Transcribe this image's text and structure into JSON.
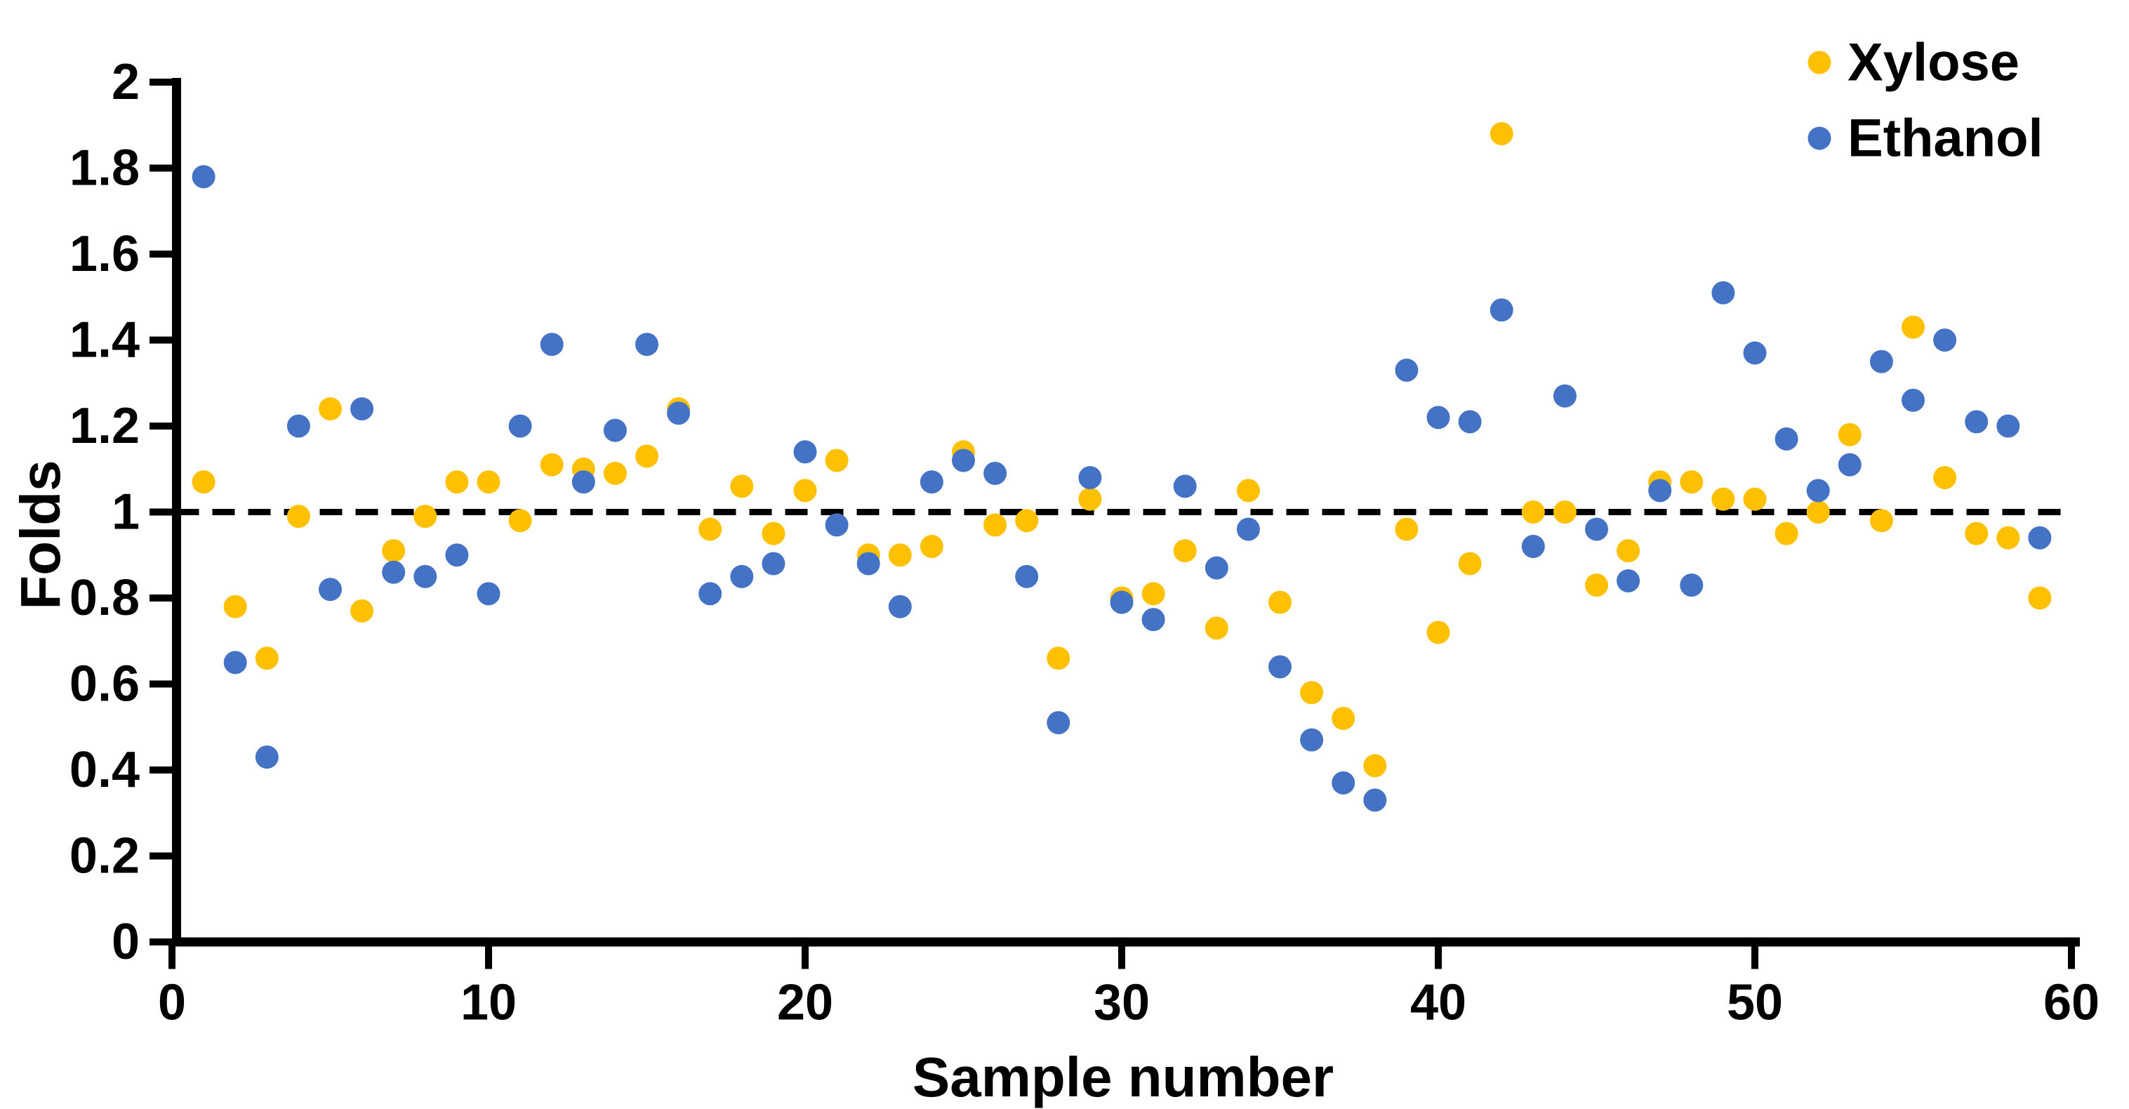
{
  "chart_data": {
    "type": "scatter",
    "title": "",
    "xlabel": "Sample number",
    "ylabel": "Folds",
    "xlim": [
      0,
      60
    ],
    "ylim": [
      0,
      2
    ],
    "x_ticks": [
      0,
      10,
      20,
      30,
      40,
      50,
      60
    ],
    "x_tick_labels": [
      "0",
      "10",
      "20",
      "30",
      "40",
      "50",
      "60"
    ],
    "y_ticks": [
      0,
      0.2,
      0.4,
      0.6,
      0.8,
      1,
      1.2,
      1.4,
      1.6,
      1.8,
      2
    ],
    "y_tick_labels": [
      "0",
      "0.2",
      "0.4",
      "0.6",
      "0.8",
      "1",
      "1.2",
      "1.4",
      "1.6",
      "1.8",
      "2"
    ],
    "grid": false,
    "axis_color": "#000000",
    "background_color": "#ffffff",
    "reference_line": {
      "y": 1,
      "style": "dashed",
      "color": "#000000"
    },
    "legend": {
      "position": "top-right"
    },
    "x": [
      1,
      2,
      3,
      4,
      5,
      6,
      7,
      8,
      9,
      10,
      11,
      12,
      13,
      14,
      15,
      16,
      17,
      18,
      19,
      20,
      21,
      22,
      23,
      24,
      25,
      26,
      27,
      28,
      29,
      30,
      31,
      32,
      33,
      34,
      35,
      36,
      37,
      38,
      39,
      40,
      41,
      42,
      43,
      44,
      45,
      46,
      47,
      48,
      49,
      50,
      51,
      52,
      53,
      54,
      55,
      56,
      57,
      58,
      59
    ],
    "series": [
      {
        "name": "Xylose",
        "color": "#FFC000",
        "marker": "circle",
        "values": [
          1.07,
          0.78,
          0.66,
          0.99,
          1.24,
          0.77,
          0.91,
          0.99,
          1.07,
          1.07,
          0.98,
          1.11,
          1.1,
          1.09,
          1.13,
          1.24,
          0.96,
          1.06,
          0.95,
          1.05,
          1.12,
          0.9,
          0.9,
          0.92,
          1.14,
          0.97,
          0.98,
          0.66,
          1.03,
          0.8,
          0.81,
          0.91,
          0.73,
          1.05,
          0.79,
          0.58,
          0.52,
          0.41,
          0.96,
          0.72,
          0.88,
          1.88,
          1.0,
          1.0,
          0.83,
          0.91,
          1.07,
          1.07,
          1.03,
          1.03,
          0.95,
          1.0,
          1.18,
          0.98,
          1.43,
          1.08,
          0.95,
          0.94,
          0.8
        ]
      },
      {
        "name": "Ethanol",
        "color": "#4472C4",
        "marker": "circle",
        "values": [
          1.78,
          0.65,
          0.43,
          1.2,
          0.82,
          1.24,
          0.86,
          0.85,
          0.9,
          0.81,
          1.2,
          1.39,
          1.07,
          1.19,
          1.39,
          1.23,
          0.81,
          0.85,
          0.88,
          1.14,
          0.97,
          0.88,
          0.78,
          1.07,
          1.12,
          1.09,
          0.85,
          0.51,
          1.08,
          0.79,
          0.75,
          1.06,
          0.87,
          0.96,
          0.64,
          0.47,
          0.37,
          0.33,
          1.33,
          1.22,
          1.21,
          1.47,
          0.92,
          1.27,
          0.96,
          0.84,
          1.05,
          0.83,
          1.51,
          1.37,
          1.17,
          1.05,
          1.11,
          1.35,
          1.26,
          1.4,
          1.21,
          1.2,
          0.94
        ]
      }
    ]
  }
}
